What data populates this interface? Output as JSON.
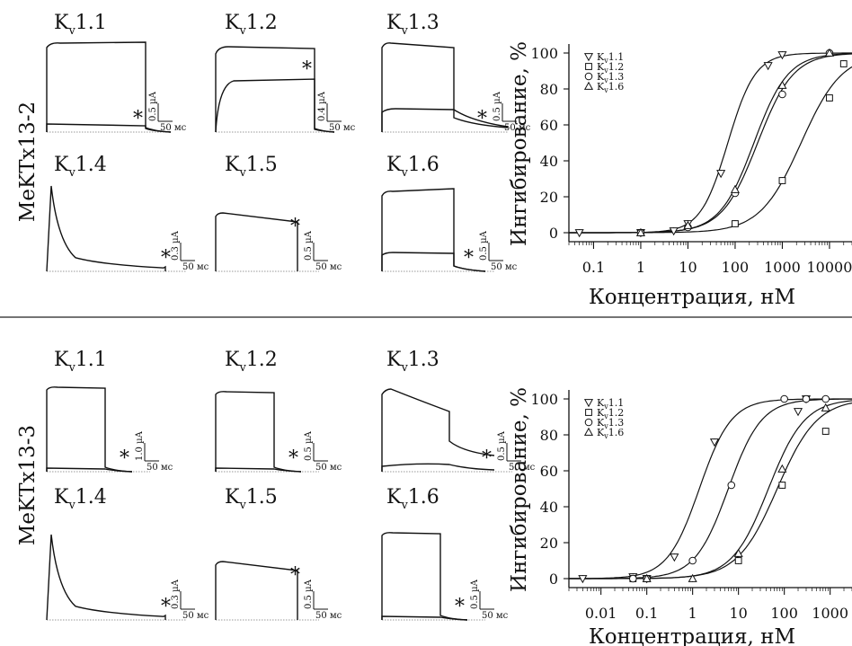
{
  "divider_color": "#222222",
  "panels": [
    {
      "toxin": "MeKTx13-2",
      "traces": [
        {
          "channel_prefix": "K",
          "channel_sub": "v",
          "channel_suffix": "1.1",
          "scale_current": "0.5 µA",
          "scale_time": "50 мс"
        },
        {
          "channel_prefix": "K",
          "channel_sub": "v",
          "channel_suffix": "1.2",
          "scale_current": "0.4 µA",
          "scale_time": "50 мс"
        },
        {
          "channel_prefix": "K",
          "channel_sub": "v",
          "channel_suffix": "1.3",
          "scale_current": "0.5 µA",
          "scale_time": "50 мс"
        },
        {
          "channel_prefix": "K",
          "channel_sub": "v",
          "channel_suffix": "1.4",
          "scale_current": "0.3 µA",
          "scale_time": "50 мс"
        },
        {
          "channel_prefix": "K",
          "channel_sub": "v",
          "channel_suffix": "1.5",
          "scale_current": "0.5 µA",
          "scale_time": "50 мс"
        },
        {
          "channel_prefix": "K",
          "channel_sub": "v",
          "channel_suffix": "1.6",
          "scale_current": "0.5 µA",
          "scale_time": "50 мс"
        }
      ]
    },
    {
      "toxin": "MeKTx13-3",
      "traces": [
        {
          "channel_prefix": "K",
          "channel_sub": "v",
          "channel_suffix": "1.1",
          "scale_current": "1.0 µA",
          "scale_time": "50 мс"
        },
        {
          "channel_prefix": "K",
          "channel_sub": "v",
          "channel_suffix": "1.2",
          "scale_current": "0.5 µA",
          "scale_time": "50 мс"
        },
        {
          "channel_prefix": "K",
          "channel_sub": "v",
          "channel_suffix": "1.3",
          "scale_current": "0.5 µA",
          "scale_time": "50 мс"
        },
        {
          "channel_prefix": "K",
          "channel_sub": "v",
          "channel_suffix": "1.4",
          "scale_current": "0.3 µA",
          "scale_time": "50 мс"
        },
        {
          "channel_prefix": "K",
          "channel_sub": "v",
          "channel_suffix": "1.5",
          "scale_current": "0.5 µA",
          "scale_time": "50 мс"
        },
        {
          "channel_prefix": "K",
          "channel_sub": "v",
          "channel_suffix": "1.6",
          "scale_current": "0.5 µA",
          "scale_time": "50 мс"
        }
      ]
    }
  ],
  "chart_data": [
    {
      "type": "scatter",
      "toxin": "MeKTx13-2",
      "xlabel": "Концентрация, нМ",
      "ylabel": "Ингибирование, %",
      "xscale": "log",
      "xlim": [
        0.03,
        30000
      ],
      "ylim": [
        -5,
        105
      ],
      "x_ticks": [
        {
          "value": 0.1,
          "label": "0.1"
        },
        {
          "value": 1,
          "label": "1"
        },
        {
          "value": 10,
          "label": "10"
        },
        {
          "value": 100,
          "label": "100"
        },
        {
          "value": 1000,
          "label": "1000"
        },
        {
          "value": 10000,
          "label": "10000"
        }
      ],
      "y_ticks": [
        0,
        20,
        40,
        60,
        80,
        100
      ],
      "legend_position": "top-left",
      "series": [
        {
          "name": "Kv1.1",
          "marker": "triangle-down",
          "points": [
            [
              0.05,
              0
            ],
            [
              1,
              0
            ],
            [
              5,
              1
            ],
            [
              10,
              5
            ],
            [
              50,
              33
            ],
            [
              500,
              93
            ],
            [
              1000,
              99
            ]
          ],
          "ic50": 70,
          "hill": 1.5
        },
        {
          "name": "Kv1.2",
          "marker": "square",
          "points": [
            [
              1,
              0
            ],
            [
              100,
              5
            ],
            [
              1000,
              29
            ],
            [
              10000,
              75
            ],
            [
              20000,
              94
            ]
          ],
          "ic50": 2500,
          "hill": 1.0
        },
        {
          "name": "Kv1.3",
          "marker": "circle",
          "points": [
            [
              1,
              0
            ],
            [
              10,
              3
            ],
            [
              100,
              22
            ],
            [
              1000,
              77
            ],
            [
              10000,
              100
            ]
          ],
          "ic50": 300,
          "hill": 1.15
        },
        {
          "name": "Kv1.6",
          "marker": "triangle-up",
          "points": [
            [
              1,
              0
            ],
            [
              10,
              4
            ],
            [
              100,
              24
            ],
            [
              1000,
              82
            ],
            [
              10000,
              100
            ]
          ],
          "ic50": 250,
          "hill": 1.2
        }
      ]
    },
    {
      "type": "scatter",
      "toxin": "MeKTx13-3",
      "xlabel": "Концентрация, нМ",
      "ylabel": "Ингибирование, %",
      "xscale": "log",
      "xlim": [
        0.002,
        3000
      ],
      "ylim": [
        -5,
        105
      ],
      "x_ticks": [
        {
          "value": 0.01,
          "label": "0.01"
        },
        {
          "value": 0.1,
          "label": "0.1"
        },
        {
          "value": 1,
          "label": "1"
        },
        {
          "value": 10,
          "label": "10"
        },
        {
          "value": 100,
          "label": "100"
        },
        {
          "value": 1000,
          "label": "1000"
        }
      ],
      "y_ticks": [
        0,
        20,
        40,
        60,
        80,
        100
      ],
      "legend_position": "top-left",
      "series": [
        {
          "name": "Kv1.1",
          "marker": "triangle-down",
          "points": [
            [
              0.004,
              0
            ],
            [
              0.05,
              1
            ],
            [
              0.1,
              0
            ],
            [
              0.4,
              12
            ],
            [
              3,
              76
            ],
            [
              200,
              93
            ],
            [
              300,
              100
            ]
          ],
          "ic50": 1.4,
          "hill": 1.25
        },
        {
          "name": "Kv1.2",
          "marker": "square",
          "points": [
            [
              0.05,
              0
            ],
            [
              0.1,
              0
            ],
            [
              10,
              10
            ],
            [
              90,
              52
            ],
            [
              800,
              82
            ]
          ],
          "ic50": 70,
          "hill": 1.0
        },
        {
          "name": "Kv1.3",
          "marker": "circle",
          "points": [
            [
              0.05,
              0
            ],
            [
              0.1,
              0
            ],
            [
              1,
              10
            ],
            [
              7,
              52
            ],
            [
              100,
              100
            ],
            [
              300,
              100
            ],
            [
              800,
              100
            ]
          ],
          "ic50": 6,
          "hill": 1.2
        },
        {
          "name": "Kv1.6",
          "marker": "triangle-up",
          "points": [
            [
              0.1,
              0
            ],
            [
              1,
              0
            ],
            [
              10,
              14
            ],
            [
              90,
              61
            ],
            [
              800,
              95
            ]
          ],
          "ic50": 45,
          "hill": 1.1
        }
      ]
    }
  ]
}
